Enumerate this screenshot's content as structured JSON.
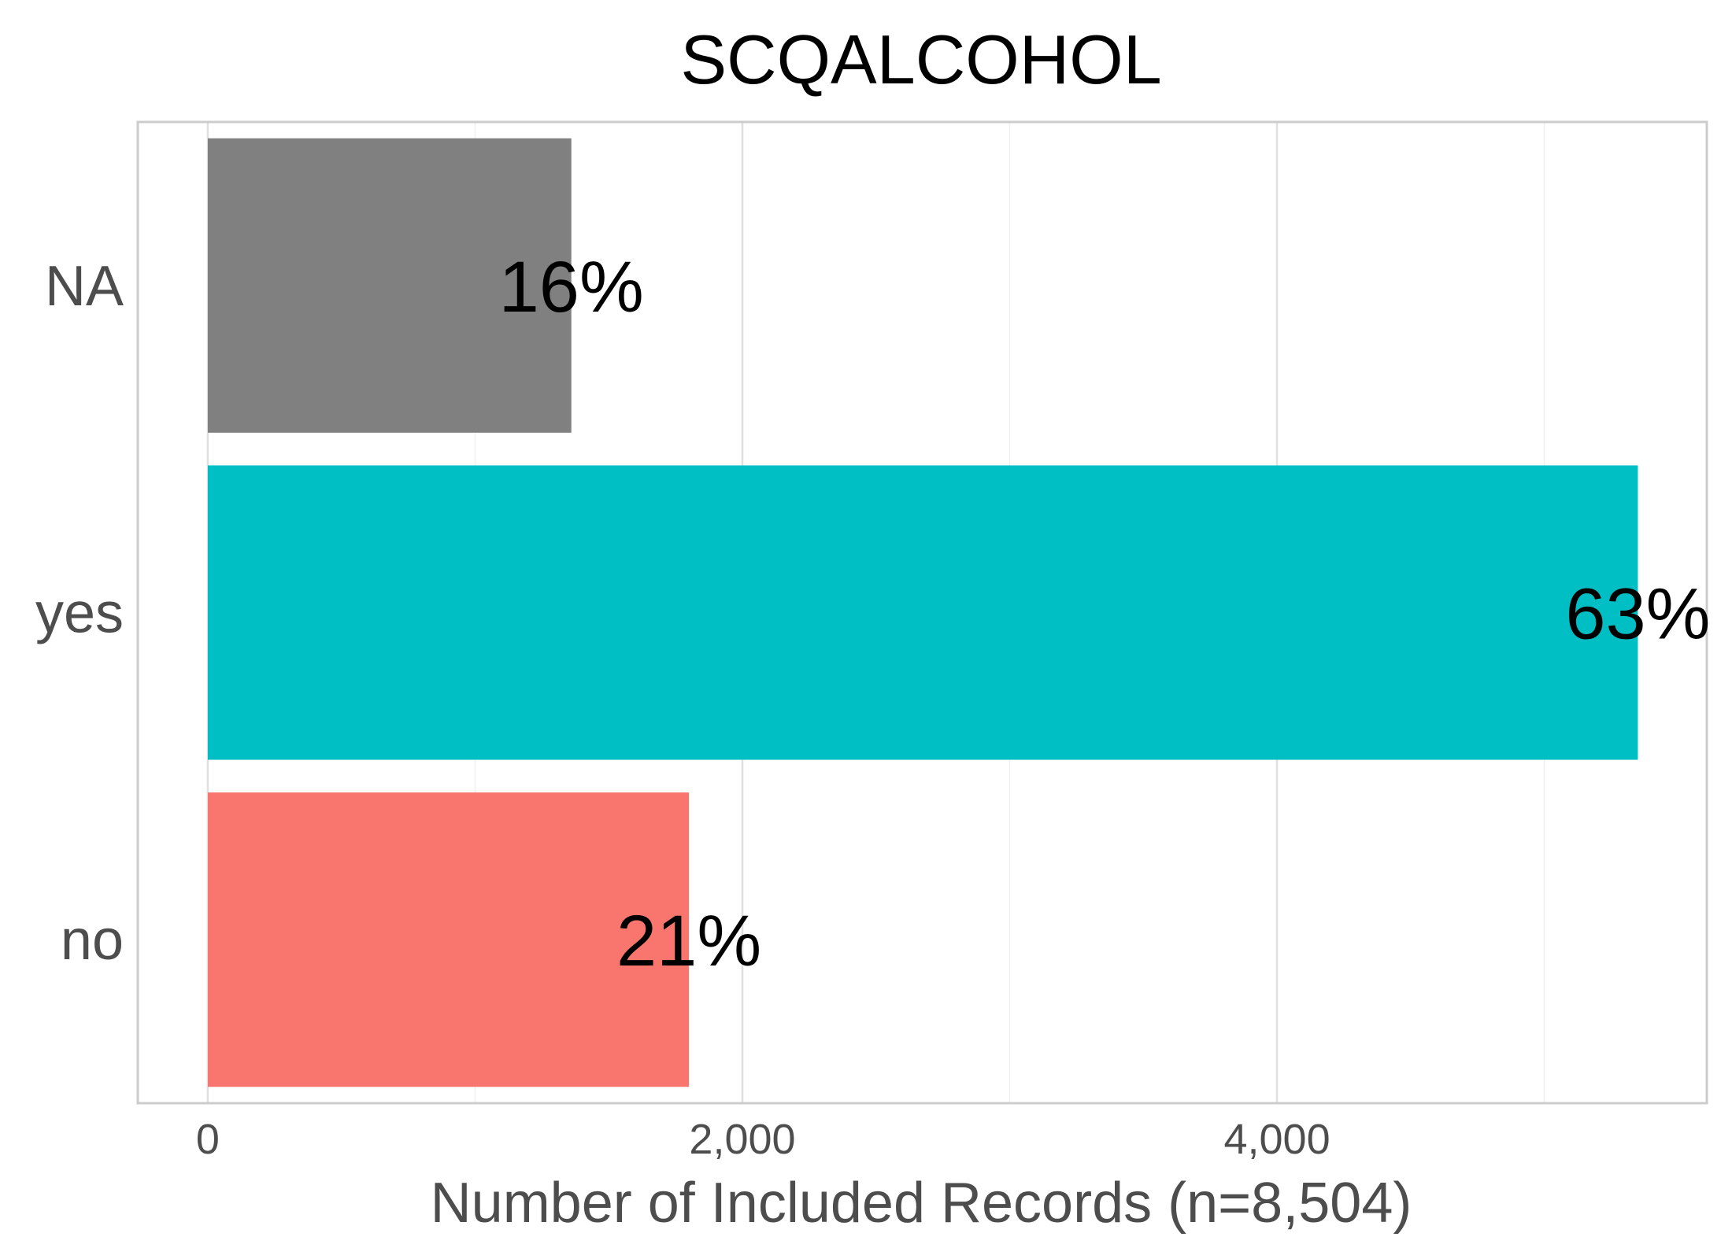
{
  "chart_data": {
    "type": "bar",
    "orientation": "horizontal",
    "title": "SCQALCOHOL",
    "xlabel": "Number of Included Records (n=8,504)",
    "ylabel": "",
    "categories": [
      "NA",
      "yes",
      "no"
    ],
    "values": [
      1360,
      5350,
      1800
    ],
    "percent_labels": [
      "16%",
      "63%",
      "21%"
    ],
    "colors": [
      "#808080",
      "#00BFC4",
      "#F8766D"
    ],
    "xlim": [
      -262,
      5608
    ],
    "xticks": [
      0,
      2000,
      4000
    ],
    "xtick_labels": [
      "0",
      "2,000",
      "4,000"
    ],
    "grid": true,
    "legend": "none"
  }
}
